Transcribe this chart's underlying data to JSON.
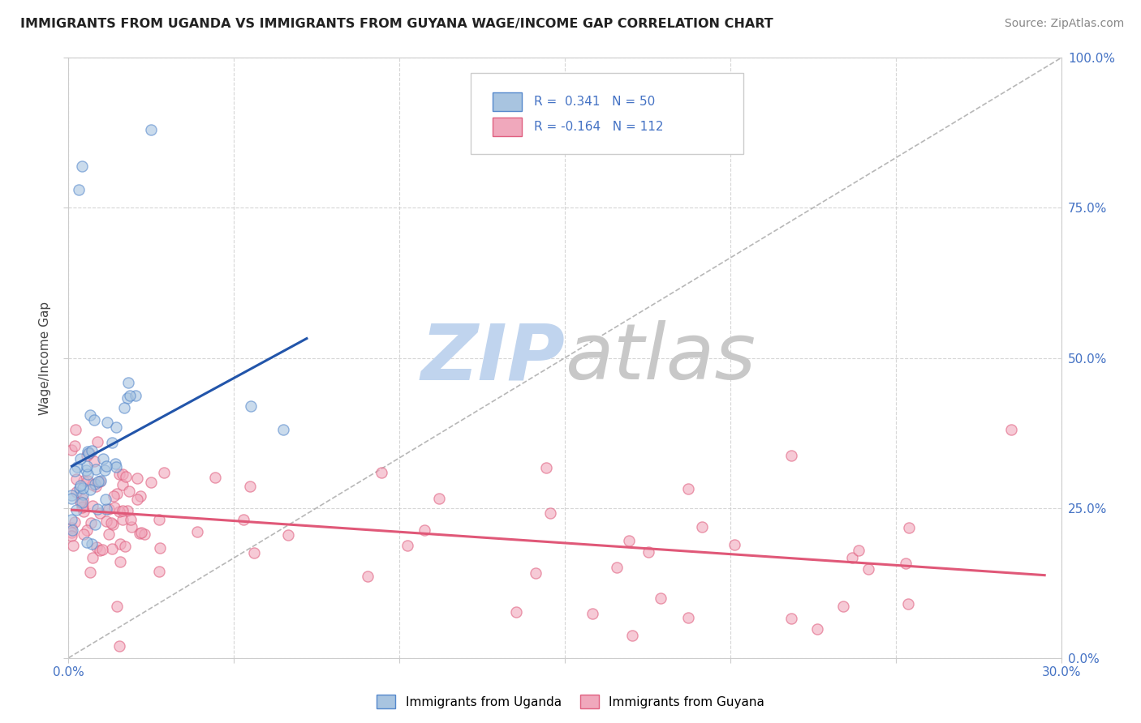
{
  "title": "IMMIGRANTS FROM UGANDA VS IMMIGRANTS FROM GUYANA WAGE/INCOME GAP CORRELATION CHART",
  "source": "Source: ZipAtlas.com",
  "legend_uganda": "Immigrants from Uganda",
  "legend_guyana": "Immigrants from Guyana",
  "R_uganda": 0.341,
  "N_uganda": 50,
  "R_guyana": -0.164,
  "N_guyana": 112,
  "color_uganda_fill": "#a8c4e0",
  "color_guyana_fill": "#f0a8bc",
  "color_uganda_edge": "#5588cc",
  "color_guyana_edge": "#e06080",
  "color_uganda_line": "#2255aa",
  "color_guyana_line": "#e05878",
  "background_color": "#ffffff",
  "grid_color": "#cccccc",
  "xmin": 0.0,
  "xmax": 0.3,
  "ymin": 0.0,
  "ymax": 1.0,
  "yticks": [
    0.0,
    0.25,
    0.5,
    0.75,
    1.0
  ],
  "ytick_labels_right": [
    "0.0%",
    "25.0%",
    "50.0%",
    "75.0%",
    "100.0%"
  ],
  "xtick_labels": [
    "0.0%",
    "30.0%"
  ],
  "xtick_positions": [
    0.0,
    0.3
  ],
  "diag_color": "#b0b0b0",
  "watermark_zip_color": "#c0d4ee",
  "watermark_atlas_color": "#c8c8c8"
}
